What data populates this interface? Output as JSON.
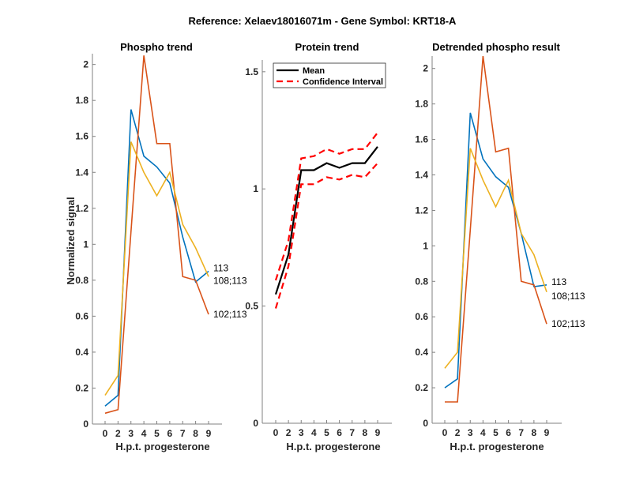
{
  "figure_title": "Reference:  Xelaev18016071m - Gene Symbol:  KRT18-A",
  "colors": {
    "blue": "#0072BD",
    "orange": "#D95319",
    "yellow": "#EDB120",
    "mean": "#000000",
    "ci": "#FF0000",
    "axis": "#808080"
  },
  "chart_data": [
    {
      "type": "line",
      "title": "Phospho trend",
      "xlabel": "H.p.t. progesterone",
      "ylabel": "Normalized signal",
      "categories": [
        "0",
        "2",
        "3",
        "4",
        "5",
        "6",
        "7",
        "8",
        "9"
      ],
      "ylim": [
        0,
        2.06
      ],
      "yticks": [
        0,
        0.2,
        0.4,
        0.6,
        0.8,
        1,
        1.2,
        1.4,
        1.6,
        1.8,
        2
      ],
      "ytick_labels": [
        "0",
        "0.2",
        "0.4",
        "0.6",
        "0.8",
        "1",
        "1.2",
        "1.4",
        "1.6",
        "1.8",
        "2"
      ],
      "grid": false,
      "series": [
        {
          "name": "113",
          "color_key": "blue",
          "values": [
            0.1,
            0.16,
            1.75,
            1.49,
            1.43,
            1.34,
            1.04,
            0.79,
            0.85
          ]
        },
        {
          "name": "102;113",
          "color_key": "orange",
          "values": [
            0.06,
            0.08,
            1.07,
            2.05,
            1.56,
            1.56,
            0.82,
            0.8,
            0.61
          ]
        },
        {
          "name": "108;113",
          "color_key": "yellow",
          "values": [
            0.16,
            0.27,
            1.57,
            1.4,
            1.27,
            1.4,
            1.11,
            0.98,
            0.82
          ]
        }
      ],
      "end_labels": [
        "113",
        "108;113",
        "102;113"
      ]
    },
    {
      "type": "line",
      "title": "Protein trend",
      "xlabel": "H.p.t. progesterone",
      "ylabel": "",
      "categories": [
        "0",
        "2",
        "3",
        "4",
        "5",
        "6",
        "7",
        "8",
        "9"
      ],
      "ylim": [
        0,
        1.55
      ],
      "yticks": [
        0,
        0.5,
        1,
        1.5
      ],
      "ytick_labels": [
        "0",
        "0.5",
        "1",
        "1.5"
      ],
      "grid": false,
      "legend": {
        "position": "top-left",
        "entries": [
          "Mean",
          "Confidence Interval"
        ]
      },
      "series": [
        {
          "name": "Mean",
          "color_key": "mean",
          "style": "solid",
          "values": [
            0.55,
            0.72,
            1.08,
            1.08,
            1.11,
            1.09,
            1.11,
            1.11,
            1.18
          ]
        },
        {
          "name": "Confidence Interval (upper)",
          "color_key": "ci",
          "style": "dashed",
          "values": [
            0.61,
            0.78,
            1.13,
            1.14,
            1.17,
            1.15,
            1.17,
            1.17,
            1.24
          ]
        },
        {
          "name": "Confidence Interval (lower)",
          "color_key": "ci",
          "style": "dashed",
          "values": [
            0.49,
            0.67,
            1.02,
            1.02,
            1.05,
            1.04,
            1.06,
            1.05,
            1.11
          ]
        }
      ]
    },
    {
      "type": "line",
      "title": "Detrended phospho result",
      "xlabel": "H.p.t. progesterone",
      "ylabel": "",
      "categories": [
        "0",
        "2",
        "3",
        "4",
        "5",
        "6",
        "7",
        "8",
        "9"
      ],
      "ylim": [
        0,
        2.07
      ],
      "yticks": [
        0,
        0.2,
        0.4,
        0.6,
        0.8,
        1,
        1.2,
        1.4,
        1.6,
        1.8,
        2
      ],
      "ytick_labels": [
        "0",
        "0.2",
        "0.4",
        "0.6",
        "0.8",
        "1",
        "1.2",
        "1.4",
        "1.6",
        "1.8",
        "2"
      ],
      "grid": false,
      "series": [
        {
          "name": "113",
          "color_key": "blue",
          "values": [
            0.2,
            0.25,
            1.75,
            1.49,
            1.39,
            1.33,
            1.07,
            0.77,
            0.78
          ]
        },
        {
          "name": "102;113",
          "color_key": "orange",
          "values": [
            0.12,
            0.12,
            1.09,
            2.07,
            1.53,
            1.55,
            0.8,
            0.78,
            0.56
          ]
        },
        {
          "name": "108;113",
          "color_key": "yellow",
          "values": [
            0.31,
            0.4,
            1.55,
            1.37,
            1.22,
            1.37,
            1.07,
            0.95,
            0.74
          ]
        }
      ],
      "end_labels": [
        "113",
        "108;113",
        "102;113"
      ]
    }
  ]
}
